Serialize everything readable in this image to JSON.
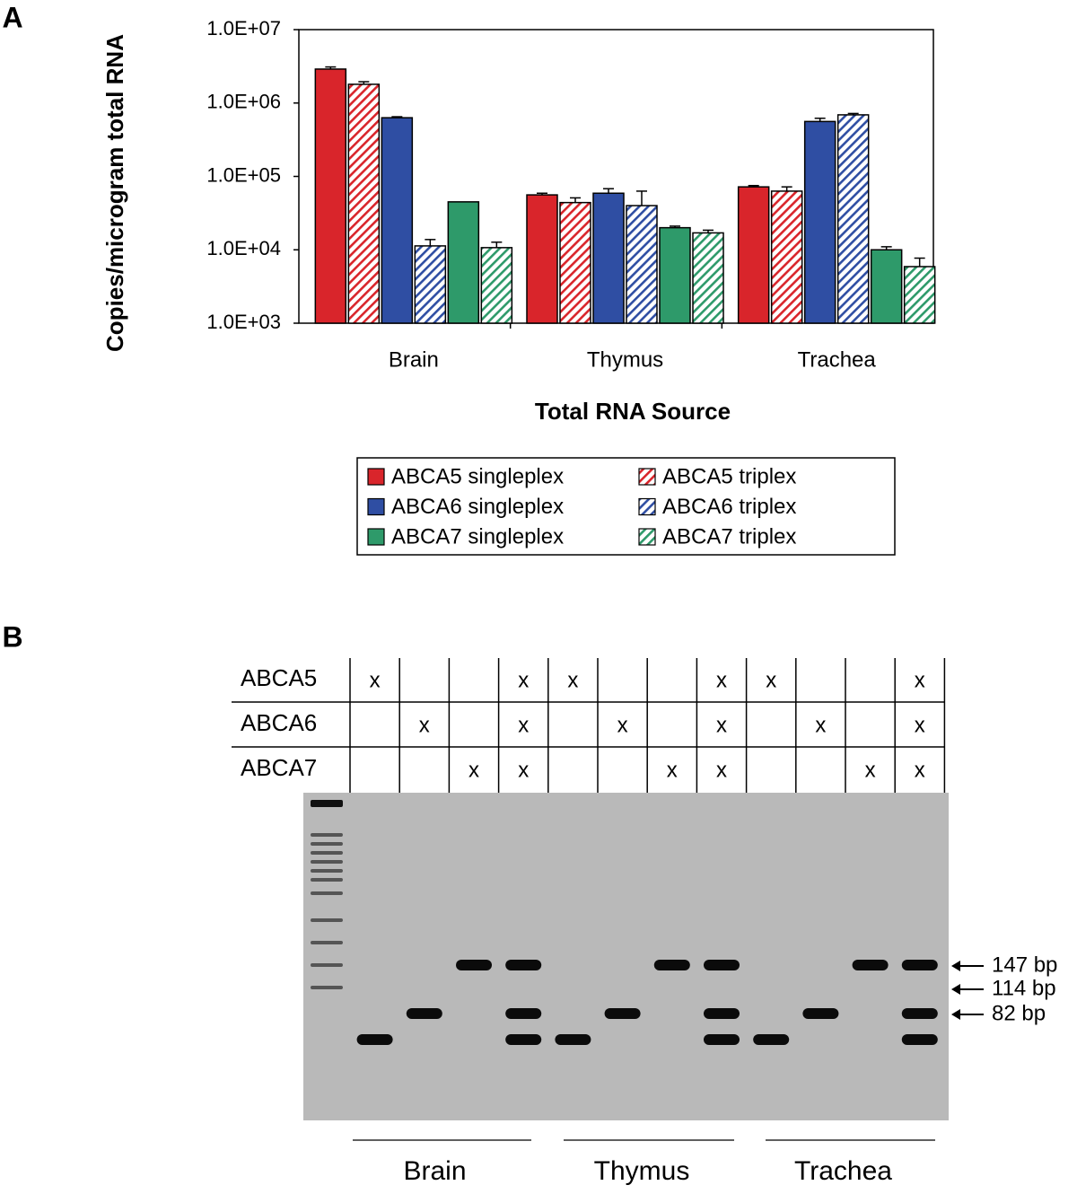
{
  "panel_labels": [
    "A",
    "B"
  ],
  "chart_data": {
    "type": "bar",
    "log_scale": true,
    "grid": false,
    "xlabel": "Total RNA Source",
    "ylabel": "Copies/microgram total RNA",
    "categories": [
      "Brain",
      "Thymus",
      "Trachea"
    ],
    "ylim": [
      1000,
      10000000
    ],
    "yticks": [
      {
        "value": 1000,
        "label": "1.0E+03"
      },
      {
        "value": 10000,
        "label": "1.0E+04"
      },
      {
        "value": 100000,
        "label": "1.0E+05"
      },
      {
        "value": 1000000,
        "label": "1.0E+06"
      },
      {
        "value": 10000000,
        "label": "1.0E+07"
      }
    ],
    "series": [
      {
        "name": "ABCA5 singleplex",
        "color": "#d9252b",
        "hatched": false,
        "values": [
          2900000,
          56000,
          72000
        ],
        "errors": [
          200000,
          3000,
          3000
        ]
      },
      {
        "name": "ABCA5 triplex",
        "color": "#d9252b",
        "hatched": true,
        "values": [
          1800000,
          44000,
          63000
        ],
        "errors": [
          150000,
          7000,
          9000
        ]
      },
      {
        "name": "ABCA6 singleplex",
        "color": "#2f4ea3",
        "hatched": false,
        "values": [
          630000,
          59000,
          560000
        ],
        "errors": [
          20000,
          9000,
          60000
        ]
      },
      {
        "name": "ABCA6 triplex",
        "color": "#2f4ea3",
        "hatched": true,
        "values": [
          11300,
          40000,
          690000
        ],
        "errors": [
          2500,
          23000,
          30000
        ]
      },
      {
        "name": "ABCA7 singleplex",
        "color": "#2e9a6a",
        "hatched": false,
        "values": [
          45000,
          20000,
          10000
        ],
        "errors": [
          0,
          1000,
          1000
        ]
      },
      {
        "name": "ABCA7 triplex",
        "color": "#2e9a6a",
        "hatched": true,
        "values": [
          10700,
          17000,
          5900
        ],
        "errors": [
          2000,
          1500,
          1800
        ]
      }
    ]
  },
  "gel": {
    "rows": [
      {
        "label": "ABCA5",
        "cells": [
          "x",
          null,
          null,
          "x",
          "x",
          null,
          null,
          "x",
          "x",
          null,
          null,
          "x"
        ]
      },
      {
        "label": "ABCA6",
        "cells": [
          null,
          "x",
          null,
          "x",
          null,
          "x",
          null,
          "x",
          null,
          "x",
          null,
          "x"
        ]
      },
      {
        "label": "ABCA7",
        "cells": [
          null,
          null,
          "x",
          "x",
          null,
          null,
          "x",
          "x",
          null,
          null,
          "x",
          "x"
        ]
      }
    ],
    "band_labels": [
      "147 bp",
      "114 bp",
      "82 bp"
    ],
    "tissues": [
      "Brain",
      "Thymus",
      "Trachea"
    ]
  }
}
